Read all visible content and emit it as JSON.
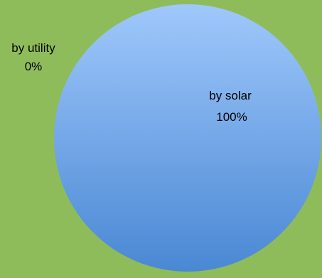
{
  "chart_data": {
    "type": "pie",
    "slices": [
      {
        "label": "by utility",
        "value": 0,
        "value_label": "0%"
      },
      {
        "label": "by solar",
        "value": 100,
        "value_label": "100%"
      }
    ]
  },
  "colors": {
    "background": "#8fbc5a",
    "pie_top": "#9fc8fb",
    "pie_bottom": "#4a88d4"
  }
}
